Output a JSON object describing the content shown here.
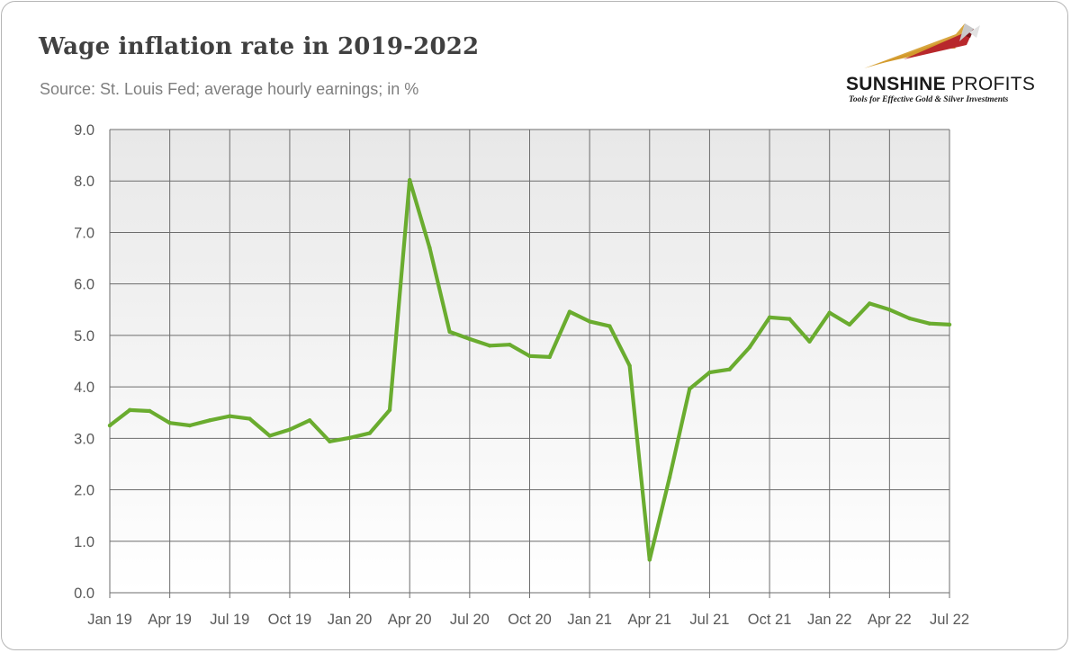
{
  "header": {
    "title": "Wage inflation rate in 2019-2022",
    "subtitle": "Source: St. Louis Fed; average hourly earnings; in %"
  },
  "logo": {
    "name_bold": "SUNSHINE",
    "name_regular": "PROFITS",
    "tagline": "Tools for Effective Gold & Silver Investments"
  },
  "chart_data": {
    "type": "line",
    "title": "Wage inflation rate in 2019-2022",
    "subtitle": "Source: St. Louis Fed; average hourly earnings; in %",
    "xlabel": "",
    "ylabel": "",
    "ylim": [
      0,
      9
    ],
    "yticks": [
      "0.0",
      "1.0",
      "2.0",
      "3.0",
      "4.0",
      "5.0",
      "6.0",
      "7.0",
      "8.0",
      "9.0"
    ],
    "xticks": [
      "Jan 19",
      "Apr 19",
      "Jul 19",
      "Oct 19",
      "Jan 20",
      "Apr 20",
      "Jul 20",
      "Oct 20",
      "Jan 21",
      "Apr 21",
      "Jul 21",
      "Oct 21",
      "Jan 22",
      "Apr 22",
      "Jul 22"
    ],
    "grid": true,
    "legend": "none",
    "colors": {
      "line": "#6aac2f",
      "plot_top": "#e8e8e8",
      "plot_bottom": "#ffffff",
      "grid": "#6d6d6d"
    },
    "x": [
      "Jan 19",
      "Feb 19",
      "Mar 19",
      "Apr 19",
      "May 19",
      "Jun 19",
      "Jul 19",
      "Aug 19",
      "Sep 19",
      "Oct 19",
      "Nov 19",
      "Dec 19",
      "Jan 20",
      "Feb 20",
      "Mar 20",
      "Apr 20",
      "May 20",
      "Jun 20",
      "Jul 20",
      "Aug 20",
      "Sep 20",
      "Oct 20",
      "Nov 20",
      "Dec 20",
      "Jan 21",
      "Feb 21",
      "Mar 21",
      "Apr 21",
      "May 21",
      "Jun 21",
      "Jul 21",
      "Aug 21",
      "Sep 21",
      "Oct 21",
      "Nov 21",
      "Dec 21",
      "Jan 22",
      "Feb 22",
      "Mar 22",
      "Apr 22",
      "May 22",
      "Jun 22",
      "Jul 22"
    ],
    "series": [
      {
        "values": [
          3.25,
          3.55,
          3.53,
          3.3,
          3.25,
          3.35,
          3.43,
          3.38,
          3.05,
          3.17,
          3.35,
          2.94,
          3.01,
          3.1,
          3.55,
          8.02,
          6.7,
          5.07,
          4.93,
          4.8,
          4.82,
          4.6,
          4.58,
          5.46,
          5.27,
          5.18,
          4.41,
          0.64,
          2.24,
          3.96,
          4.28,
          4.34,
          4.77,
          5.35,
          5.32,
          4.88,
          5.44,
          5.21,
          5.62,
          5.5,
          5.33,
          5.23,
          5.21
        ]
      }
    ]
  }
}
